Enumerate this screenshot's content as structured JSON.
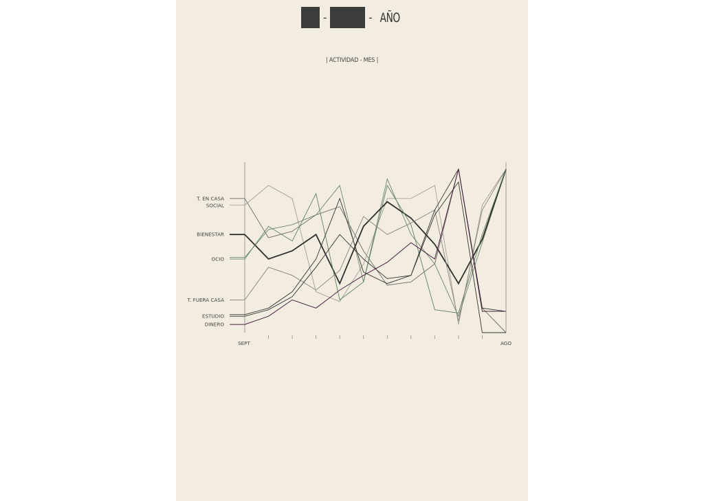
{
  "header": {
    "separator_1": "-",
    "separator_2": "-",
    "title_suffix": "AÑO",
    "subtitle": "| ACTIVIDAD - MES |"
  },
  "chart_data": {
    "type": "line",
    "title": "AÑO",
    "subtitle": "| ACTIVIDAD - MES |",
    "x": [
      1,
      2,
      3,
      4,
      5,
      6,
      7,
      8,
      9,
      10,
      11,
      12
    ],
    "x_tick_labels": [
      "SEPT",
      "",
      "",
      "",
      "",
      "",
      "",
      "",
      "",
      "",
      "",
      "AGO"
    ],
    "ylim": [
      0,
      100
    ],
    "grid": false,
    "legend": "left-side labels at first point",
    "series": [
      {
        "name": "T. EN CASA",
        "color": "#6b6b68",
        "width": 0.9,
        "values": [
          82,
          58,
          62,
          72,
          77,
          50,
          29,
          31,
          42,
          100,
          15,
          0
        ]
      },
      {
        "name": "SOCIAL",
        "color": "#a3a099",
        "width": 0.9,
        "values": [
          78,
          90,
          82,
          25,
          19,
          42,
          82,
          82,
          90,
          5,
          78,
          100
        ]
      },
      {
        "name": "",
        "color": "#6d866e",
        "width": 0.9,
        "values": [
          46,
          63,
          66,
          72,
          90,
          31,
          94,
          60,
          42,
          10,
          55,
          100
        ]
      },
      {
        "name": "BIENESTAR",
        "color": "#2f2f2d",
        "width": 1.8,
        "values": [
          60,
          45,
          50,
          60,
          30,
          65,
          80,
          70,
          54,
          30,
          57,
          100
        ]
      },
      {
        "name": "OCIO",
        "color": "#5d8262",
        "width": 0.9,
        "values": [
          45,
          65,
          56,
          85,
          20,
          31,
          90,
          66,
          14,
          12,
          60,
          100
        ]
      },
      {
        "name": "T. FUERA CASA",
        "color": "#868480",
        "width": 0.9,
        "values": [
          20,
          40,
          35,
          26,
          38,
          71,
          60,
          67,
          75,
          7,
          75,
          100
        ]
      },
      {
        "name": "",
        "color": "#333333",
        "width": 0.9,
        "values": [
          11,
          15,
          25,
          45,
          82,
          37,
          30,
          35,
          75,
          100,
          15,
          13
        ]
      },
      {
        "name": "ESTUDIO",
        "color": "#333333",
        "width": 0.9,
        "values": [
          10,
          14,
          22,
          40,
          60,
          45,
          33,
          35,
          72,
          92,
          0,
          0
        ]
      },
      {
        "name": "DINERO",
        "color": "#4a2142",
        "width": 1.0,
        "values": [
          5,
          10,
          20,
          15,
          26,
          35,
          43,
          55,
          45,
          100,
          13,
          13
        ]
      }
    ]
  }
}
